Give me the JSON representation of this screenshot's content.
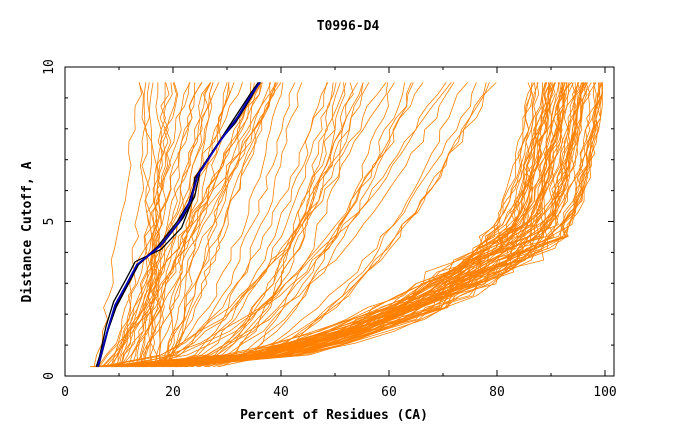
{
  "chart_data": {
    "type": "line",
    "title": "T0996-D4",
    "xlabel": "Percent of Residues (CA)",
    "ylabel": "Distance Cutoff, A",
    "xlim": [
      0,
      100
    ],
    "ylim": [
      0,
      10
    ],
    "xticks": [
      "0",
      "20",
      "40",
      "60",
      "80",
      "100"
    ],
    "yticks": [
      "0",
      "5",
      "10"
    ],
    "grid": false,
    "colors": {
      "models": "#ff8000",
      "highlight_black": "#000000",
      "highlight_blue": "#0000c0"
    },
    "highlighted_series": [
      {
        "color": "#000000",
        "x": [
          6.2,
          8.0,
          9.6,
          11.6,
          13.4,
          17.2,
          20.8,
          22.9,
          24.5,
          28.6,
          31.6,
          34.4,
          36.0
        ],
        "y": [
          0.3,
          1.5,
          2.3,
          3.0,
          3.6,
          4.2,
          5.0,
          5.6,
          6.5,
          7.6,
          8.2,
          9.0,
          9.5
        ]
      },
      {
        "color": "#000000",
        "x": [
          6.0,
          7.6,
          9.0,
          11.2,
          13.0,
          17.8,
          21.6,
          23.6,
          24.0,
          28.2,
          31.2,
          34.2,
          35.8
        ],
        "y": [
          0.3,
          1.6,
          2.4,
          3.1,
          3.7,
          4.1,
          4.8,
          5.7,
          6.4,
          7.5,
          8.3,
          9.1,
          9.5
        ]
      },
      {
        "color": "#000000",
        "x": [
          5.8,
          7.8,
          9.4,
          11.8,
          13.6,
          18.2,
          21.8,
          24.0,
          25.0,
          29.0,
          32.0,
          34.8,
          36.2
        ],
        "y": [
          0.3,
          1.4,
          2.2,
          3.0,
          3.6,
          4.3,
          5.1,
          5.8,
          6.6,
          7.7,
          8.4,
          9.2,
          9.5
        ]
      },
      {
        "color": "#0000c0",
        "x": [
          6.1,
          7.9,
          9.3,
          11.5,
          13.3,
          17.6,
          21.2,
          23.3,
          24.6,
          28.7,
          31.7,
          34.5,
          36.1
        ],
        "y": [
          0.3,
          1.5,
          2.3,
          3.0,
          3.6,
          4.2,
          5.0,
          5.7,
          6.5,
          7.6,
          8.3,
          9.1,
          9.5
        ]
      }
    ],
    "model_groups": [
      {
        "count": 40,
        "x_at_0.3": [
          5,
          20
        ],
        "x_at_9.5": [
          13,
          40
        ],
        "shape": "steep near-linear"
      },
      {
        "count": 30,
        "x_at_0.3": [
          4,
          30
        ],
        "x_at_9.5": [
          40,
          80
        ],
        "shape": "mid spread"
      },
      {
        "count": 70,
        "x_at_0.3": [
          5,
          22
        ],
        "x_at_9.5": [
          86,
          100
        ],
        "shape": "concave rising to knee near y=4-5 at x=82-92"
      }
    ]
  }
}
